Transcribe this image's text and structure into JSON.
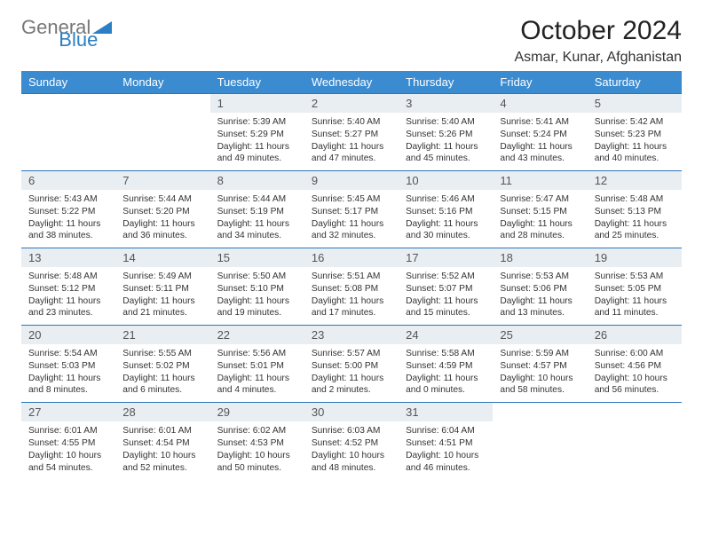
{
  "logo": {
    "text_gray": "General",
    "text_blue": "Blue",
    "brand_blue": "#2b7fc4"
  },
  "title": "October 2024",
  "location": "Asmar, Kunar, Afghanistan",
  "colors": {
    "header_bg": "#3a8bd0",
    "header_text": "#ffffff",
    "daynum_bg": "#e9eef2",
    "border": "#2e75b6",
    "body_text": "#333333",
    "page_bg": "#ffffff"
  },
  "day_headers": [
    "Sunday",
    "Monday",
    "Tuesday",
    "Wednesday",
    "Thursday",
    "Friday",
    "Saturday"
  ],
  "weeks": [
    [
      {
        "empty": true
      },
      {
        "empty": true
      },
      {
        "n": "1",
        "sr": "5:39 AM",
        "ss": "5:29 PM",
        "dl": "11 hours and 49 minutes."
      },
      {
        "n": "2",
        "sr": "5:40 AM",
        "ss": "5:27 PM",
        "dl": "11 hours and 47 minutes."
      },
      {
        "n": "3",
        "sr": "5:40 AM",
        "ss": "5:26 PM",
        "dl": "11 hours and 45 minutes."
      },
      {
        "n": "4",
        "sr": "5:41 AM",
        "ss": "5:24 PM",
        "dl": "11 hours and 43 minutes."
      },
      {
        "n": "5",
        "sr": "5:42 AM",
        "ss": "5:23 PM",
        "dl": "11 hours and 40 minutes."
      }
    ],
    [
      {
        "n": "6",
        "sr": "5:43 AM",
        "ss": "5:22 PM",
        "dl": "11 hours and 38 minutes."
      },
      {
        "n": "7",
        "sr": "5:44 AM",
        "ss": "5:20 PM",
        "dl": "11 hours and 36 minutes."
      },
      {
        "n": "8",
        "sr": "5:44 AM",
        "ss": "5:19 PM",
        "dl": "11 hours and 34 minutes."
      },
      {
        "n": "9",
        "sr": "5:45 AM",
        "ss": "5:17 PM",
        "dl": "11 hours and 32 minutes."
      },
      {
        "n": "10",
        "sr": "5:46 AM",
        "ss": "5:16 PM",
        "dl": "11 hours and 30 minutes."
      },
      {
        "n": "11",
        "sr": "5:47 AM",
        "ss": "5:15 PM",
        "dl": "11 hours and 28 minutes."
      },
      {
        "n": "12",
        "sr": "5:48 AM",
        "ss": "5:13 PM",
        "dl": "11 hours and 25 minutes."
      }
    ],
    [
      {
        "n": "13",
        "sr": "5:48 AM",
        "ss": "5:12 PM",
        "dl": "11 hours and 23 minutes."
      },
      {
        "n": "14",
        "sr": "5:49 AM",
        "ss": "5:11 PM",
        "dl": "11 hours and 21 minutes."
      },
      {
        "n": "15",
        "sr": "5:50 AM",
        "ss": "5:10 PM",
        "dl": "11 hours and 19 minutes."
      },
      {
        "n": "16",
        "sr": "5:51 AM",
        "ss": "5:08 PM",
        "dl": "11 hours and 17 minutes."
      },
      {
        "n": "17",
        "sr": "5:52 AM",
        "ss": "5:07 PM",
        "dl": "11 hours and 15 minutes."
      },
      {
        "n": "18",
        "sr": "5:53 AM",
        "ss": "5:06 PM",
        "dl": "11 hours and 13 minutes."
      },
      {
        "n": "19",
        "sr": "5:53 AM",
        "ss": "5:05 PM",
        "dl": "11 hours and 11 minutes."
      }
    ],
    [
      {
        "n": "20",
        "sr": "5:54 AM",
        "ss": "5:03 PM",
        "dl": "11 hours and 8 minutes."
      },
      {
        "n": "21",
        "sr": "5:55 AM",
        "ss": "5:02 PM",
        "dl": "11 hours and 6 minutes."
      },
      {
        "n": "22",
        "sr": "5:56 AM",
        "ss": "5:01 PM",
        "dl": "11 hours and 4 minutes."
      },
      {
        "n": "23",
        "sr": "5:57 AM",
        "ss": "5:00 PM",
        "dl": "11 hours and 2 minutes."
      },
      {
        "n": "24",
        "sr": "5:58 AM",
        "ss": "4:59 PM",
        "dl": "11 hours and 0 minutes."
      },
      {
        "n": "25",
        "sr": "5:59 AM",
        "ss": "4:57 PM",
        "dl": "10 hours and 58 minutes."
      },
      {
        "n": "26",
        "sr": "6:00 AM",
        "ss": "4:56 PM",
        "dl": "10 hours and 56 minutes."
      }
    ],
    [
      {
        "n": "27",
        "sr": "6:01 AM",
        "ss": "4:55 PM",
        "dl": "10 hours and 54 minutes."
      },
      {
        "n": "28",
        "sr": "6:01 AM",
        "ss": "4:54 PM",
        "dl": "10 hours and 52 minutes."
      },
      {
        "n": "29",
        "sr": "6:02 AM",
        "ss": "4:53 PM",
        "dl": "10 hours and 50 minutes."
      },
      {
        "n": "30",
        "sr": "6:03 AM",
        "ss": "4:52 PM",
        "dl": "10 hours and 48 minutes."
      },
      {
        "n": "31",
        "sr": "6:04 AM",
        "ss": "4:51 PM",
        "dl": "10 hours and 46 minutes."
      },
      {
        "empty": true
      },
      {
        "empty": true
      }
    ]
  ],
  "labels": {
    "sunrise": "Sunrise:",
    "sunset": "Sunset:",
    "daylight": "Daylight:"
  }
}
